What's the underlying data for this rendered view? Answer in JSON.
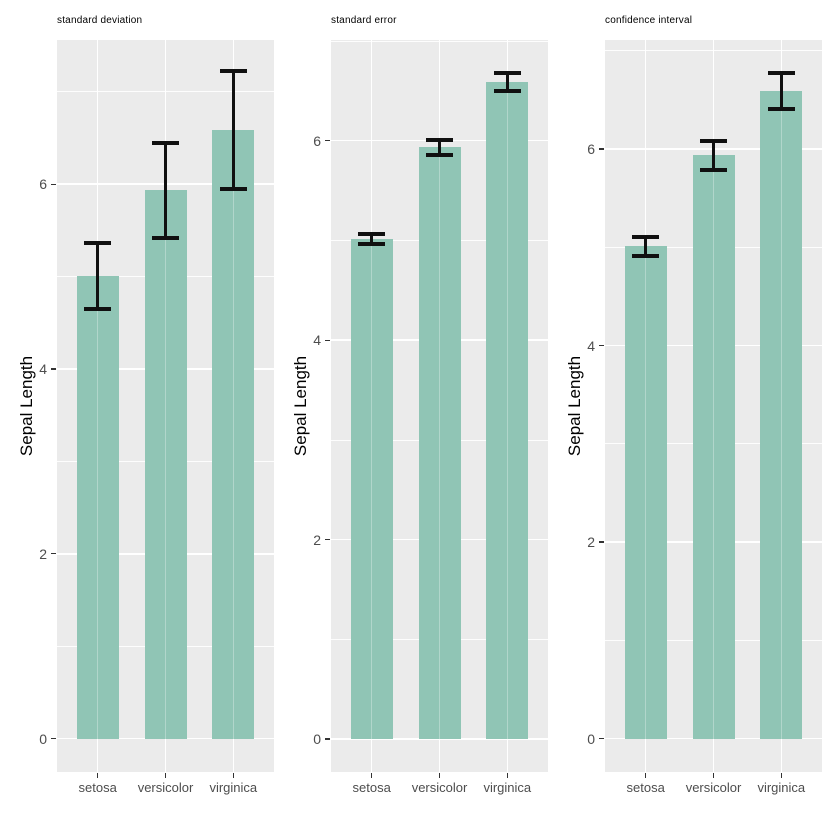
{
  "style": {
    "background": "#ffffff",
    "panel_bg": "#ebebeb",
    "grid_color": "#ffffff",
    "bar_fill": "#90c5b5",
    "errorbar_color": "#101010",
    "tick_label_color": "#4d4d4d",
    "axis_title_color": "#000000"
  },
  "chart_data": [
    {
      "type": "bar",
      "title": "standard deviation",
      "xlabel": "",
      "ylabel": "Sepal Length",
      "categories": [
        "setosa",
        "versicolor",
        "virginica"
      ],
      "values": [
        5.01,
        5.94,
        6.59
      ],
      "error_low": [
        4.65,
        5.42,
        5.95
      ],
      "error_high": [
        5.36,
        6.45,
        7.22
      ],
      "yticks": [
        0,
        2,
        4,
        6
      ],
      "yticks_minor": [
        1,
        3,
        5,
        7
      ],
      "ylim": [
        -0.36,
        7.56
      ],
      "grid": "major+minor white on grey panel",
      "legend": "none"
    },
    {
      "type": "bar",
      "title": "standard error",
      "xlabel": "",
      "ylabel": "Sepal Length",
      "categories": [
        "setosa",
        "versicolor",
        "virginica"
      ],
      "values": [
        5.01,
        5.94,
        6.59
      ],
      "error_low": [
        4.96,
        5.86,
        6.5
      ],
      "error_high": [
        5.06,
        6.01,
        6.68
      ],
      "yticks": [
        0,
        2,
        4,
        6
      ],
      "yticks_minor": [
        1,
        3,
        5,
        7
      ],
      "ylim": [
        -0.33,
        7.01
      ],
      "grid": "major+minor white on grey panel",
      "legend": "none"
    },
    {
      "type": "bar",
      "title": "confidence interval",
      "xlabel": "",
      "ylabel": "Sepal Length",
      "categories": [
        "setosa",
        "versicolor",
        "virginica"
      ],
      "values": [
        5.01,
        5.94,
        6.59
      ],
      "error_low": [
        4.91,
        5.79,
        6.41
      ],
      "error_high": [
        5.11,
        6.08,
        6.77
      ],
      "yticks": [
        0,
        2,
        4,
        6
      ],
      "yticks_minor": [
        1,
        3,
        5,
        7
      ],
      "ylim": [
        -0.34,
        7.11
      ],
      "grid": "major+minor white on grey panel",
      "legend": "none"
    }
  ]
}
